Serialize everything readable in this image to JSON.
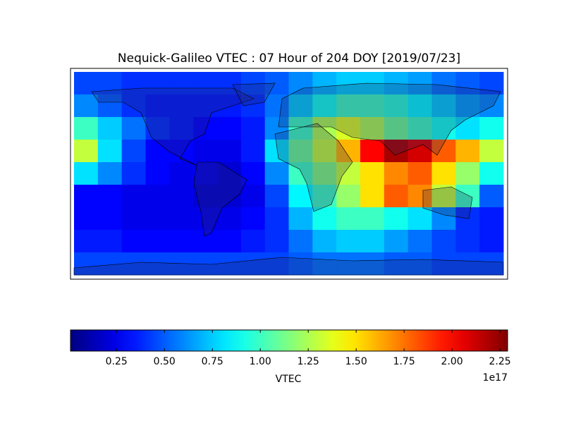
{
  "chart_data": {
    "type": "heatmap",
    "title": "Nequick-Galileo VTEC : 07 Hour of 204 DOY [2019/07/23]",
    "colormap": "jet",
    "z": [
      [
        0.45,
        0.45,
        0.4,
        0.4,
        0.4,
        0.4,
        0.4,
        0.45,
        0.5,
        0.6,
        0.7,
        0.75,
        0.75,
        0.7,
        0.65,
        0.55,
        0.5,
        0.45
      ],
      [
        0.6,
        0.5,
        0.4,
        0.35,
        0.35,
        0.35,
        0.35,
        0.4,
        0.55,
        0.75,
        0.9,
        1.0,
        1.0,
        0.95,
        0.85,
        0.75,
        0.65,
        0.6
      ],
      [
        1.0,
        0.75,
        0.55,
        0.4,
        0.35,
        0.3,
        0.3,
        0.35,
        0.6,
        1.0,
        1.25,
        1.35,
        1.25,
        1.1,
        1.0,
        0.9,
        0.8,
        0.9
      ],
      [
        1.3,
        0.8,
        0.45,
        0.3,
        0.3,
        0.25,
        0.25,
        0.35,
        0.8,
        1.1,
        1.3,
        1.6,
        2.0,
        2.2,
        2.1,
        1.8,
        1.6,
        1.3
      ],
      [
        0.8,
        0.6,
        0.4,
        0.3,
        0.25,
        0.25,
        0.2,
        0.3,
        0.6,
        1.0,
        1.15,
        1.3,
        1.5,
        1.7,
        1.8,
        1.5,
        1.2,
        0.9
      ],
      [
        0.3,
        0.3,
        0.25,
        0.25,
        0.25,
        0.2,
        0.2,
        0.25,
        0.45,
        0.85,
        1.0,
        1.2,
        1.5,
        1.8,
        1.7,
        1.3,
        1.0,
        0.5
      ],
      [
        0.3,
        0.3,
        0.25,
        0.25,
        0.25,
        0.25,
        0.25,
        0.3,
        0.4,
        0.7,
        0.9,
        1.0,
        1.0,
        0.9,
        0.8,
        0.6,
        0.4,
        0.35
      ],
      [
        0.35,
        0.35,
        0.3,
        0.3,
        0.3,
        0.3,
        0.3,
        0.35,
        0.4,
        0.55,
        0.7,
        0.75,
        0.75,
        0.65,
        0.55,
        0.45,
        0.4,
        0.35
      ],
      [
        0.45,
        0.45,
        0.45,
        0.45,
        0.45,
        0.45,
        0.45,
        0.45,
        0.45,
        0.5,
        0.55,
        0.55,
        0.55,
        0.5,
        0.5,
        0.45,
        0.45,
        0.45
      ]
    ],
    "clim": [
      0.01,
      2.29
    ],
    "cticks": [
      0.25,
      {
        "value": 0.5,
        "label": "0.50"
      },
      0.75,
      {
        "value": 1.0,
        "label": "1.00"
      },
      1.25,
      {
        "value": 1.5,
        "label": "1.50"
      },
      1.75,
      {
        "value": 2.0,
        "label": "2.00"
      },
      2.25
    ],
    "colorbar_label": "VTEC",
    "colorbar_offset": "1e17"
  }
}
